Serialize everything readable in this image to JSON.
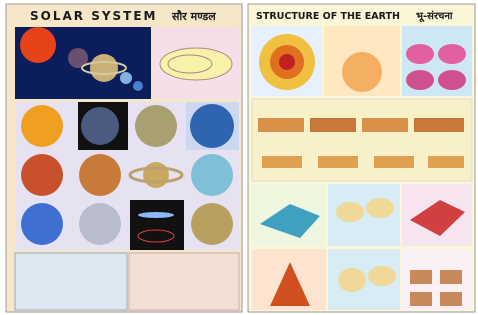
{
  "left_poster": {
    "title": "SOLAR SYSTEM",
    "title_hindi": "सौर मण्डल"
  },
  "right_poster": {
    "title": "STRUCTURE OF THE EARTH",
    "title_hindi": "भू-संरचना"
  }
}
